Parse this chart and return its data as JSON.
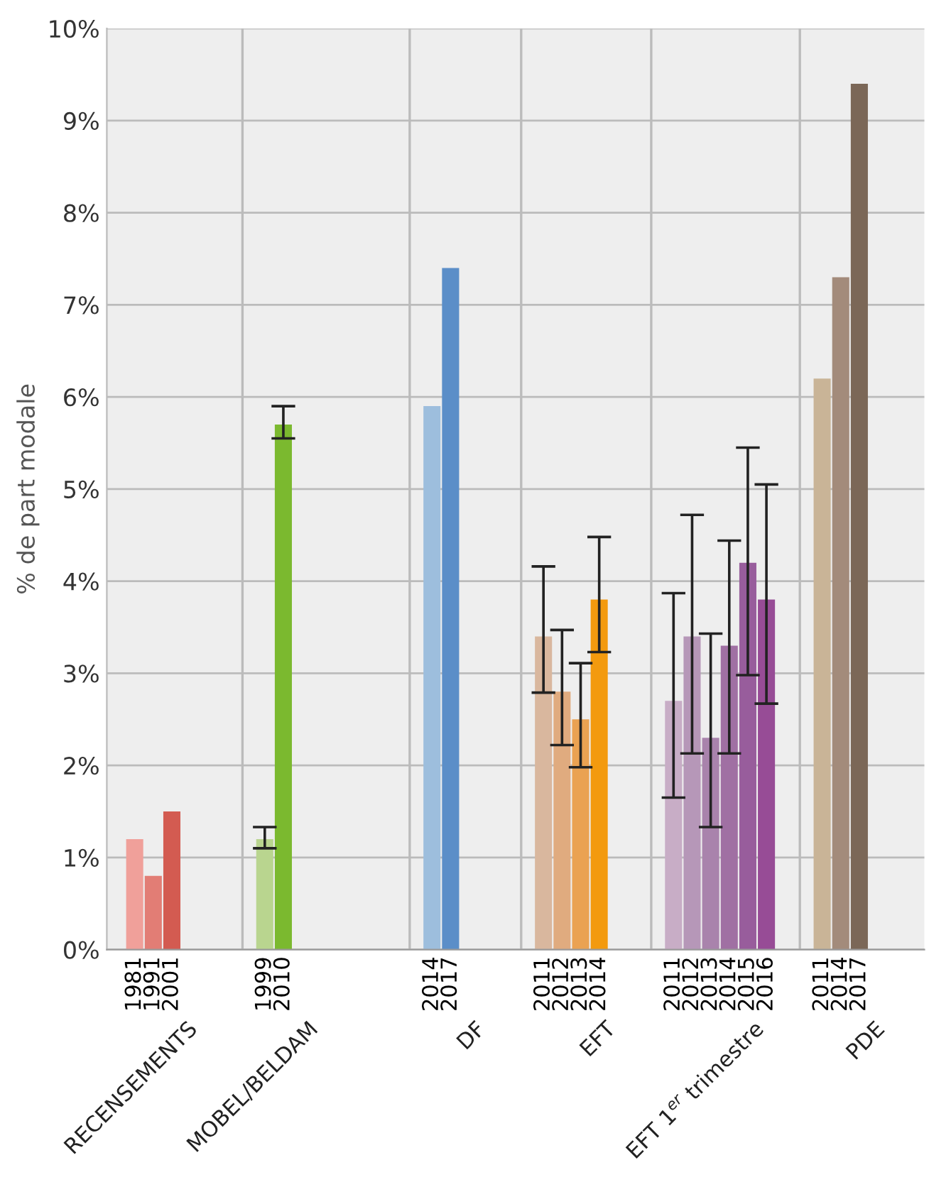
{
  "chart_data": {
    "type": "bar",
    "ylabel": "% de part modale",
    "categories": [
      null,
      "1981",
      "1991",
      "2001",
      null,
      null,
      null,
      null,
      "1999",
      "2010",
      null,
      null,
      null,
      null,
      null,
      null,
      null,
      "2014",
      "2017",
      null,
      null,
      null,
      null,
      "2011",
      "2012",
      "2013",
      "2014",
      null,
      null,
      null,
      "2011",
      "2012",
      "2013",
      "2014",
      "2015",
      "2016",
      null,
      null,
      "2011",
      "2014",
      "2017",
      null,
      null,
      null
    ],
    "series": [
      {
        "values": [
          null,
          1.2,
          0.8,
          1.5,
          null,
          null,
          null,
          null,
          null,
          null,
          null,
          null,
          null,
          null,
          null,
          null,
          null,
          null,
          null,
          null,
          null,
          null,
          null,
          null,
          null,
          null,
          null,
          null,
          null,
          null,
          null,
          null,
          null,
          null,
          null,
          null,
          null,
          null,
          null,
          null,
          null,
          null,
          null,
          null
        ],
        "colors": [
          null,
          "#f0a09a",
          "#e27d75",
          "#d35b51",
          null,
          null,
          null,
          null,
          null,
          null,
          null,
          null,
          null,
          null,
          null,
          null,
          null,
          null,
          null,
          null,
          null,
          null,
          null,
          null,
          null,
          null,
          null,
          null,
          null,
          null,
          null,
          null,
          null,
          null,
          null,
          null,
          null,
          null,
          null,
          null,
          null,
          null,
          null,
          null
        ]
      },
      {
        "values": [
          null,
          null,
          null,
          null,
          null,
          null,
          null,
          null,
          1.2,
          5.7,
          null,
          null,
          null,
          null,
          null,
          null,
          null,
          null,
          null,
          null,
          null,
          null,
          null,
          null,
          null,
          null,
          null,
          null,
          null,
          null,
          null,
          null,
          null,
          null,
          null,
          null,
          null,
          null,
          null,
          null,
          null,
          null,
          null,
          null
        ],
        "colors": [
          null,
          null,
          null,
          null,
          null,
          null,
          null,
          null,
          "#b9d58f",
          "#7bb92f",
          null,
          null,
          null,
          null,
          null,
          null,
          null,
          null,
          null,
          null,
          null,
          null,
          null,
          null,
          null,
          null,
          null,
          null,
          null,
          null,
          null,
          null,
          null,
          null,
          null,
          null,
          null,
          null,
          null,
          null,
          null,
          null,
          null,
          null
        ],
        "errors": [
          null,
          null,
          null,
          null,
          null,
          null,
          null,
          null,
          [
            1.1,
            1.33
          ],
          [
            5.55,
            5.9
          ],
          null,
          null,
          null,
          null,
          null,
          null,
          null,
          null,
          null,
          null,
          null,
          null,
          null,
          null,
          null,
          null,
          null,
          null,
          null,
          null,
          null,
          null,
          null,
          null,
          null,
          null,
          null,
          null,
          null,
          null,
          null,
          null,
          null,
          null
        ]
      },
      {
        "values": [
          null,
          null,
          null,
          null,
          null,
          null,
          null,
          null,
          null,
          null,
          null,
          null,
          null,
          null,
          null,
          null,
          null,
          5.9,
          7.4,
          null,
          null,
          null,
          null,
          null,
          null,
          null,
          null,
          null,
          null,
          null,
          null,
          null,
          null,
          null,
          null,
          null,
          null,
          null,
          null,
          null,
          null,
          null,
          null,
          null
        ],
        "colors": [
          null,
          null,
          null,
          null,
          null,
          null,
          null,
          null,
          null,
          null,
          null,
          null,
          null,
          null,
          null,
          null,
          null,
          "#9dbedd",
          "#5b8ec8",
          null,
          null,
          null,
          null,
          null,
          null,
          null,
          null,
          null,
          null,
          null,
          null,
          null,
          null,
          null,
          null,
          null,
          null,
          null,
          null,
          null,
          null,
          null,
          null,
          null
        ]
      },
      {
        "values": [
          null,
          null,
          null,
          null,
          null,
          null,
          null,
          null,
          null,
          null,
          null,
          null,
          null,
          null,
          null,
          null,
          null,
          null,
          null,
          null,
          null,
          null,
          null,
          3.4,
          2.8,
          2.5,
          3.8,
          null,
          null,
          null,
          null,
          null,
          null,
          null,
          null,
          null,
          null,
          null,
          null,
          null,
          null,
          null,
          null,
          null
        ],
        "colors": [
          null,
          null,
          null,
          null,
          null,
          null,
          null,
          null,
          null,
          null,
          null,
          null,
          null,
          null,
          null,
          null,
          null,
          null,
          null,
          null,
          null,
          null,
          null,
          "#d9b79e",
          "#e0ab7f",
          "#eaa252",
          "#f39a0e",
          null,
          null,
          null,
          null,
          null,
          null,
          null,
          null,
          null,
          null,
          null,
          null,
          null,
          null,
          null,
          null,
          null
        ],
        "errors": [
          null,
          null,
          null,
          null,
          null,
          null,
          null,
          null,
          null,
          null,
          null,
          null,
          null,
          null,
          null,
          null,
          null,
          null,
          null,
          null,
          null,
          null,
          null,
          [
            2.79,
            4.16
          ],
          [
            2.22,
            3.47
          ],
          [
            1.98,
            3.11
          ],
          [
            3.23,
            4.48
          ],
          null,
          null,
          null,
          null,
          null,
          null,
          null,
          null,
          null,
          null,
          null,
          null,
          null,
          null,
          null,
          null,
          null
        ]
      },
      {
        "values": [
          null,
          null,
          null,
          null,
          null,
          null,
          null,
          null,
          null,
          null,
          null,
          null,
          null,
          null,
          null,
          null,
          null,
          null,
          null,
          null,
          null,
          null,
          null,
          null,
          null,
          null,
          null,
          null,
          null,
          null,
          2.7,
          3.4,
          2.3,
          3.3,
          4.2,
          3.8,
          null,
          null,
          null,
          null,
          null,
          null,
          null,
          null
        ],
        "colors": [
          null,
          null,
          null,
          null,
          null,
          null,
          null,
          null,
          null,
          null,
          null,
          null,
          null,
          null,
          null,
          null,
          null,
          null,
          null,
          null,
          null,
          null,
          null,
          null,
          null,
          null,
          null,
          null,
          null,
          null,
          "#c8adc6",
          "#b697b8",
          "#a983ac",
          "#a070a3",
          "#985d9c",
          "#974c96",
          null,
          null,
          null,
          null,
          null,
          null,
          null,
          null
        ],
        "errors": [
          null,
          null,
          null,
          null,
          null,
          null,
          null,
          null,
          null,
          null,
          null,
          null,
          null,
          null,
          null,
          null,
          null,
          null,
          null,
          null,
          null,
          null,
          null,
          null,
          null,
          null,
          null,
          null,
          null,
          null,
          [
            1.65,
            3.87
          ],
          [
            2.13,
            4.72
          ],
          [
            1.33,
            3.43
          ],
          [
            2.13,
            4.44
          ],
          [
            2.98,
            5.45
          ],
          [
            2.67,
            5.05
          ],
          null,
          null,
          null,
          null,
          null,
          null,
          null,
          null
        ]
      },
      {
        "values": [
          null,
          null,
          null,
          null,
          null,
          null,
          null,
          null,
          null,
          null,
          null,
          null,
          null,
          null,
          null,
          null,
          null,
          null,
          null,
          null,
          null,
          null,
          null,
          null,
          null,
          null,
          null,
          null,
          null,
          null,
          null,
          null,
          null,
          null,
          null,
          null,
          null,
          null,
          6.2,
          7.3,
          9.4,
          null,
          null,
          null
        ],
        "colors": [
          null,
          null,
          null,
          null,
          null,
          null,
          null,
          null,
          null,
          null,
          null,
          null,
          null,
          null,
          null,
          null,
          null,
          null,
          null,
          null,
          null,
          null,
          null,
          null,
          null,
          null,
          null,
          null,
          null,
          null,
          null,
          null,
          null,
          null,
          null,
          null,
          null,
          null,
          "#c9b497",
          "#a38b7b",
          "#7b6757",
          null,
          null,
          null
        ]
      }
    ],
    "ylim": [
      0,
      10
    ],
    "yticks": [
      {
        "value": 0,
        "label": "0%"
      },
      {
        "value": 1,
        "label": "1%"
      },
      {
        "value": 2,
        "label": "2%"
      },
      {
        "value": 3,
        "label": "3%"
      },
      {
        "value": 4,
        "label": "4%"
      },
      {
        "value": 5,
        "label": "5%"
      },
      {
        "value": 6,
        "label": "6%"
      },
      {
        "value": 7,
        "label": "7%"
      },
      {
        "value": 8,
        "label": "8%"
      },
      {
        "value": 9,
        "label": "9%"
      },
      {
        "value": 10,
        "label": "10%"
      }
    ],
    "annotations": [
      "RECENSEMENTS",
      "MOBEL/BELDAM",
      "DF",
      "EFT",
      "EFT 1$^{er}$ trimestre",
      "PDE"
    ],
    "grid": true,
    "legend": false
  }
}
